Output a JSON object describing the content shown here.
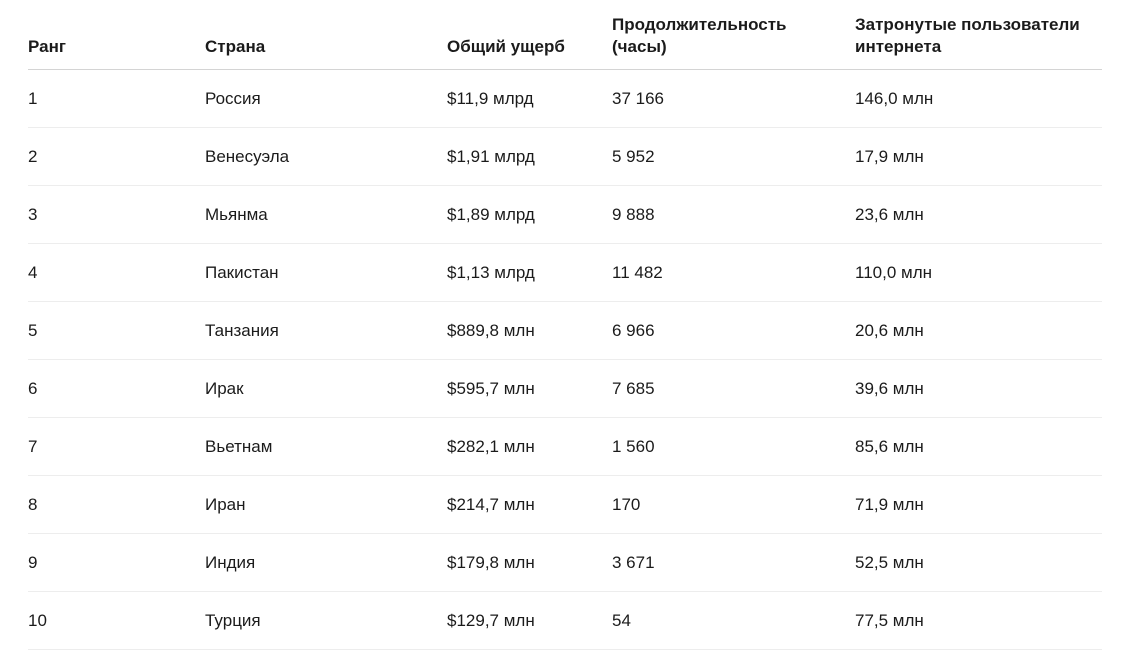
{
  "colors": {
    "background": "#ffffff",
    "text": "#1b1b1b",
    "header_border": "#d4d4d4",
    "row_border": "#ededed"
  },
  "chart_data": {
    "type": "table",
    "columns": [
      {
        "key": "rank",
        "label": "Ранг"
      },
      {
        "key": "country",
        "label": "Страна"
      },
      {
        "key": "total-damage",
        "label": "Общий ущерб"
      },
      {
        "key": "duration-hours",
        "label": "Продолжительность (часы)"
      },
      {
        "key": "affected-users",
        "label": "Затронутые пользователи интернета"
      }
    ],
    "rows": [
      [
        "1",
        "Россия",
        "$11,9 млрд",
        "37 166",
        "146,0 млн"
      ],
      [
        "2",
        "Венесуэла",
        "$1,91 млрд",
        "5 952",
        "17,9 млн"
      ],
      [
        "3",
        "Мьянма",
        "$1,89 млрд",
        "9 888",
        "23,6 млн"
      ],
      [
        "4",
        "Пакистан",
        "$1,13 млрд",
        "11 482",
        "110,0 млн"
      ],
      [
        "5",
        "Танзания",
        "$889,8 млн",
        "6 966",
        "20,6 млн"
      ],
      [
        "6",
        "Ирак",
        "$595,7 млн",
        "7 685",
        "39,6 млн"
      ],
      [
        "7",
        "Вьетнам",
        "$282,1 млн",
        "1 560",
        "85,6 млн"
      ],
      [
        "8",
        "Иран",
        "$214,7 млн",
        "170",
        "71,9 млн"
      ],
      [
        "9",
        "Индия",
        "$179,8 млн",
        "3 671",
        "52,5 млн"
      ],
      [
        "10",
        "Турция",
        "$129,7 млн",
        "54",
        "77,5 млн"
      ]
    ]
  }
}
